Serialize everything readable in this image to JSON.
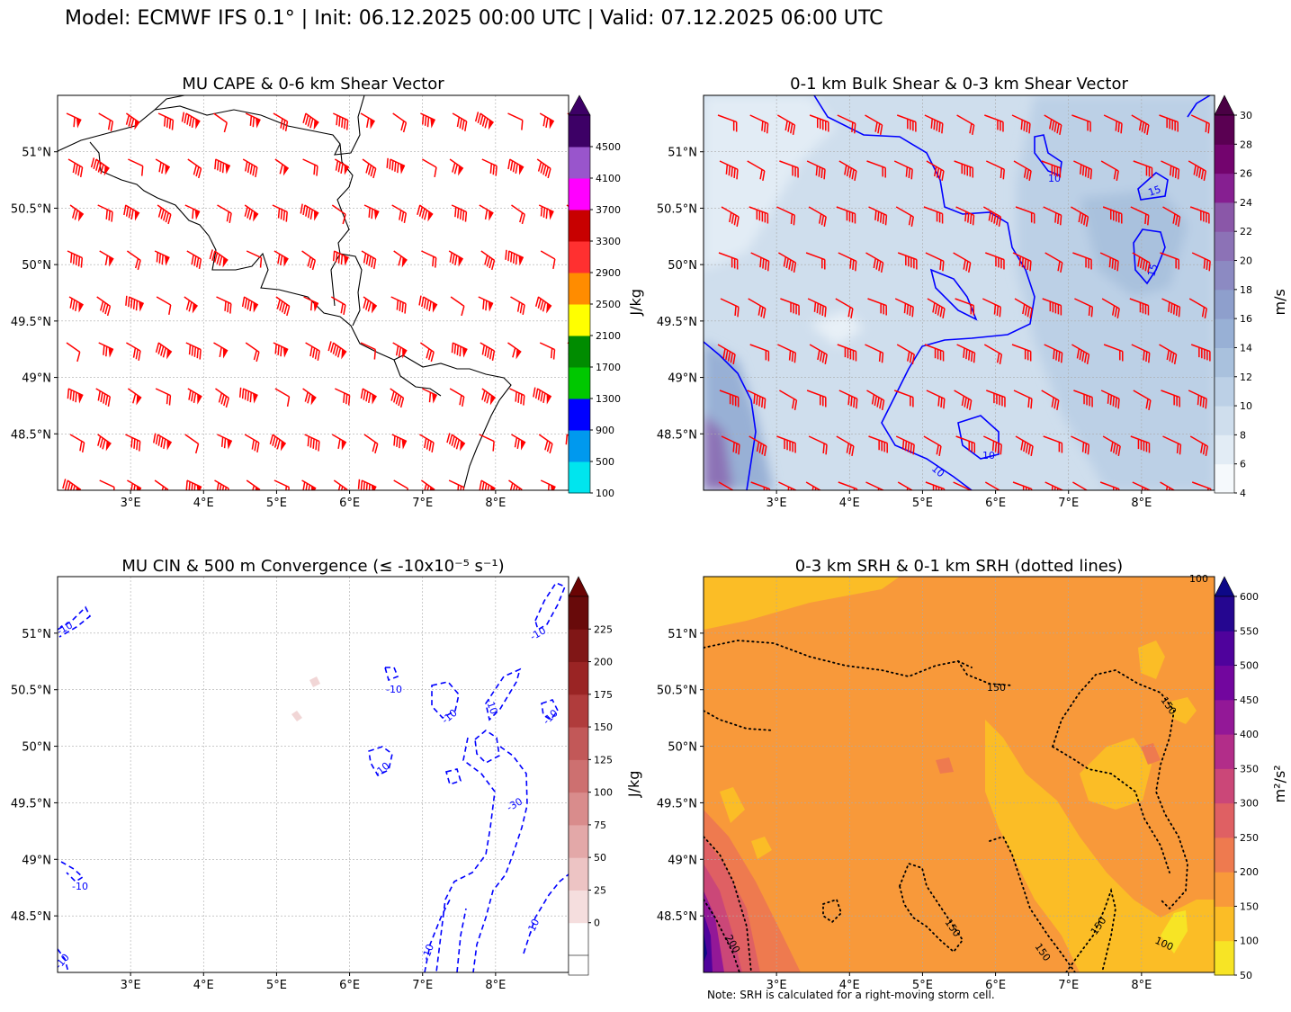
{
  "figure": {
    "suptitle": "Model: ECMWF IFS 0.1° | Init: 06.12.2025 00:00 UTC | Valid: 07.12.2025 06:00 UTC",
    "note": "Note: SRH is calculated for a right-moving storm cell."
  },
  "chart_data": [
    {
      "id": "cape",
      "type": "heatmap",
      "title": "MU CAPE & 0-6 km Shear Vector",
      "xlim": [
        2.0,
        9.0
      ],
      "ylim": [
        48.0,
        51.5
      ],
      "xticks": [
        3,
        4,
        5,
        6,
        7,
        8
      ],
      "xtick_labels": [
        "3°E",
        "4°E",
        "5°E",
        "6°E",
        "7°E",
        "8°E"
      ],
      "yticks": [
        48.5,
        49.0,
        49.5,
        50.0,
        50.5,
        51.0
      ],
      "ytick_labels": [
        "48.5°N",
        "49°N",
        "49.5°N",
        "50°N",
        "50.5°N",
        "51°N"
      ],
      "background_value": "below 100 (no fill)",
      "colorbar": {
        "label": "J/kg",
        "levels": [
          100,
          500,
          900,
          1300,
          1700,
          2100,
          2500,
          2900,
          3300,
          3700,
          4100,
          4500
        ],
        "tick_labels": [
          "100",
          "500",
          "900",
          "1300",
          "1700",
          "2100",
          "2500",
          "2900",
          "3300",
          "3700",
          "4100",
          "4500"
        ],
        "colors": [
          "#00e5ee",
          "#0099ee",
          "#0000ff",
          "#00c800",
          "#008c00",
          "#ffff00",
          "#ff8c00",
          "#ff3030",
          "#c80000",
          "#ff00ff",
          "#9955cc",
          "#3d0066"
        ],
        "extend": "max",
        "extend_color": "#3d0066"
      },
      "barbs": {
        "color": "#ff0000",
        "quantity": "0-6 km shear vector",
        "direction": "from west-northwest",
        "speed_range_kt": [
          45,
          70
        ]
      }
    },
    {
      "id": "shear",
      "type": "heatmap",
      "title": "0-1 km Bulk Shear & 0-3 km Shear Vector",
      "xlim": [
        2.0,
        9.0
      ],
      "ylim": [
        48.0,
        51.5
      ],
      "xticks": [
        3,
        4,
        5,
        6,
        7,
        8
      ],
      "xtick_labels": [
        "3°E",
        "4°E",
        "5°E",
        "6°E",
        "7°E",
        "8°E"
      ],
      "yticks": [
        48.5,
        49.0,
        49.5,
        50.0,
        50.5,
        51.0
      ],
      "ytick_labels": [
        "48.5°N",
        "49°N",
        "49.5°N",
        "50°N",
        "50.5°N",
        "51°N"
      ],
      "field_range_ms": [
        6,
        18
      ],
      "colorbar": {
        "label": "m/s",
        "levels": [
          4,
          6,
          8,
          10,
          12,
          14,
          16,
          18,
          20,
          22,
          24,
          26,
          28,
          30
        ],
        "tick_labels": [
          "4",
          "6",
          "8",
          "10",
          "12",
          "14",
          "16",
          "18",
          "20",
          "22",
          "24",
          "26",
          "28",
          "30"
        ],
        "colors": [
          "#f5f9fc",
          "#e2ecf5",
          "#cfdeed",
          "#bcd0e6",
          "#a9c1dd",
          "#98b0d5",
          "#8e9fcc",
          "#8c8ac2",
          "#8c72b6",
          "#8a57a8",
          "#861f91",
          "#73046e",
          "#5a0052"
        ],
        "extend": "max",
        "extend_color": "#4a0044"
      },
      "contours": {
        "color": "#0000ff",
        "levels": [
          10,
          15
        ],
        "labels": [
          "10",
          "15"
        ]
      },
      "barbs": {
        "color": "#ff0000",
        "quantity": "0-3 km shear vector",
        "direction": "from west-northwest"
      }
    },
    {
      "id": "cin",
      "type": "heatmap",
      "title": "MU CIN & 500 m Convergence (≤ -10x10⁻⁵ s⁻¹)",
      "xlim": [
        2.0,
        9.0
      ],
      "ylim": [
        48.0,
        51.5
      ],
      "xticks": [
        3,
        4,
        5,
        6,
        7,
        8
      ],
      "xtick_labels": [
        "3°E",
        "4°E",
        "5°E",
        "6°E",
        "7°E",
        "8°E"
      ],
      "yticks": [
        48.5,
        49.0,
        49.5,
        50.0,
        50.5,
        51.0
      ],
      "ytick_labels": [
        "48.5°N",
        "49°N",
        "49.5°N",
        "50°N",
        "50.5°N",
        "51°N"
      ],
      "colorbar": {
        "label": "J/kg",
        "levels": [
          0,
          25,
          50,
          75,
          100,
          125,
          150,
          175,
          200,
          225
        ],
        "tick_labels": [
          "0",
          "25",
          "50",
          "75",
          "100",
          "125",
          "150",
          "175",
          "200",
          "225"
        ],
        "colors": [
          "#ffffff",
          "#f5dede",
          "#edc4c4",
          "#e3a8a8",
          "#d98c8c",
          "#cd7070",
          "#c25858",
          "#b03c3c",
          "#9a2424",
          "#801616",
          "#680a0a"
        ],
        "extend": "both",
        "extend_color": "#6a0404"
      },
      "contours": {
        "color": "#0000ff",
        "style": "dashed",
        "levels": [
          -10,
          -30
        ],
        "labels": [
          "-10",
          "-30"
        ]
      }
    },
    {
      "id": "srh",
      "type": "heatmap",
      "title": "0-3 km SRH & 0-1 km SRH (dotted lines)",
      "xlim": [
        2.0,
        9.0
      ],
      "ylim": [
        48.0,
        51.5
      ],
      "xticks": [
        3,
        4,
        5,
        6,
        7,
        8
      ],
      "xtick_labels": [
        "3°E",
        "4°E",
        "5°E",
        "6°E",
        "7°E",
        "8°E"
      ],
      "yticks": [
        48.5,
        49.0,
        49.5,
        50.0,
        50.5,
        51.0
      ],
      "ytick_labels": [
        "48.5°N",
        "49°N",
        "49.5°N",
        "50°N",
        "50.5°N",
        "51°N"
      ],
      "field_range": [
        100,
        600
      ],
      "colorbar": {
        "label": "m²/s²",
        "levels": [
          50,
          100,
          150,
          200,
          250,
          300,
          350,
          400,
          450,
          500,
          550,
          600
        ],
        "tick_labels": [
          "50",
          "100",
          "150",
          "200",
          "250",
          "300",
          "350",
          "400",
          "450",
          "500",
          "550",
          "600"
        ],
        "colors": [
          "#f7e425",
          "#fbbd26",
          "#f8993a",
          "#ee7a4f",
          "#df6063",
          "#cb4778",
          "#b22d89",
          "#931897",
          "#72069e",
          "#4f029c",
          "#250690"
        ],
        "extend": "max",
        "extend_color": "#0d0887"
      },
      "contours": {
        "color": "#000000",
        "style": "dotted",
        "levels": [
          100,
          150,
          200
        ],
        "labels": [
          "100",
          "150",
          "200"
        ]
      }
    }
  ]
}
